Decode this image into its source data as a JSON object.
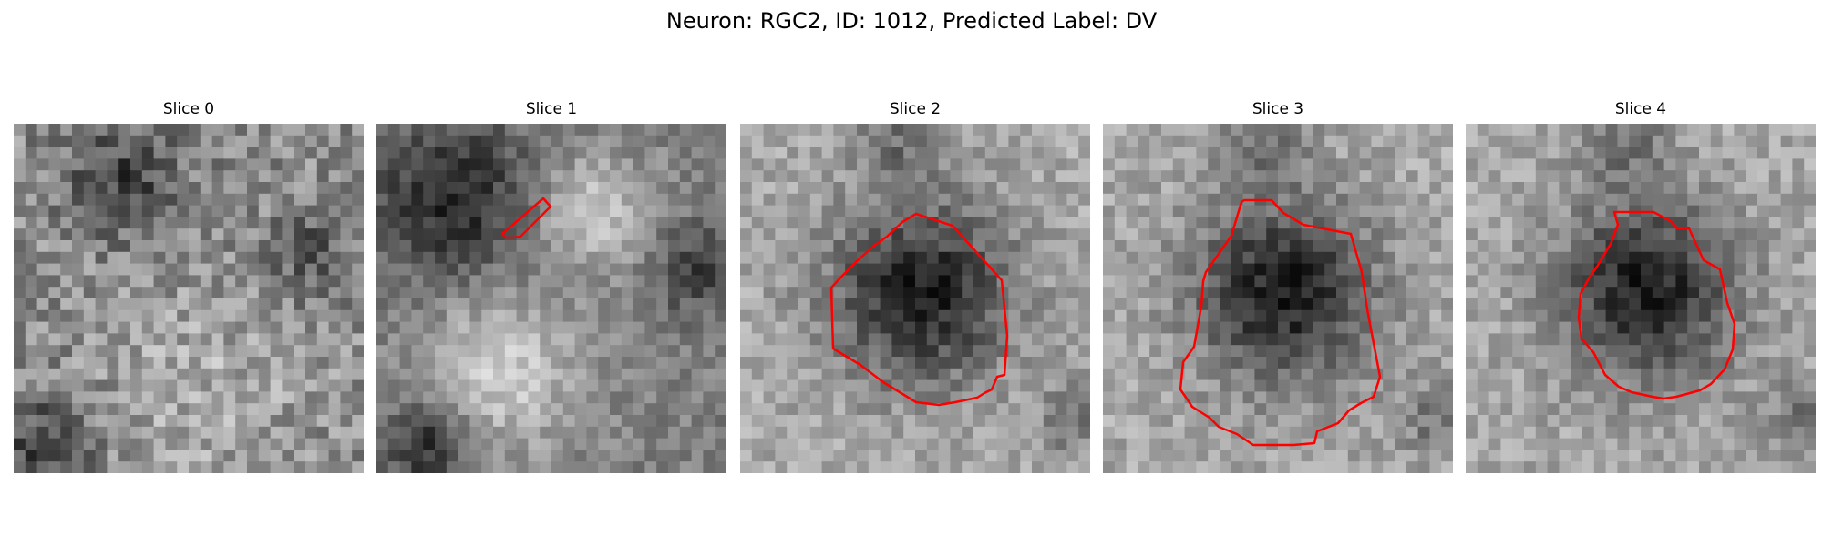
{
  "figure": {
    "title": "Neuron: RGC2, ID: 1012, Predicted Label: DV"
  },
  "panels": [
    {
      "title": "Slice 0",
      "pattern": "patchy-uniform",
      "has_contour": false
    },
    {
      "title": "Slice 1",
      "pattern": "dark-upper-left-bright-lower",
      "has_contour": true,
      "contour_shape": "small-diagonal-sliver"
    },
    {
      "title": "Slice 2",
      "pattern": "dark-cell-body-center",
      "has_contour": true,
      "contour_shape": "polygon"
    },
    {
      "title": "Slice 3",
      "pattern": "dark-cell-body-center",
      "has_contour": true,
      "contour_shape": "polygon"
    },
    {
      "title": "Slice 4",
      "pattern": "dark-cell-body-center",
      "has_contour": true,
      "contour_shape": "polygon"
    }
  ],
  "colors": {
    "contour": "#ff0000",
    "background": "#ffffff"
  }
}
